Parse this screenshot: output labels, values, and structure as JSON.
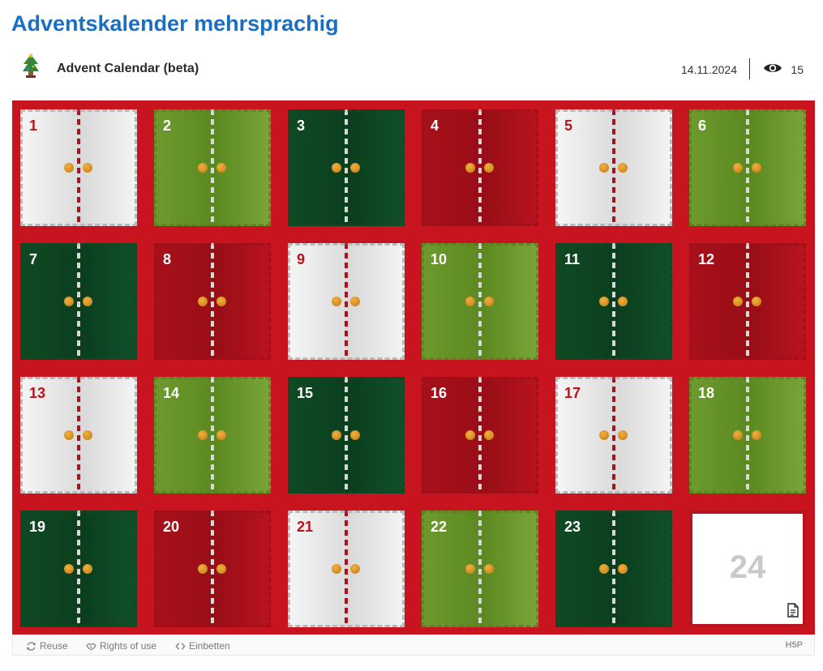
{
  "page": {
    "title": "Adventskalender mehrsprachig"
  },
  "content": {
    "icon": "christmas-tree-icon",
    "title": "Advent Calendar (beta)",
    "date": "14.11.2024",
    "view_icon": "eye-icon",
    "view_count": "15"
  },
  "calendar": {
    "background": "#c8141e",
    "doors": [
      {
        "label": "1",
        "style": "white"
      },
      {
        "label": "2",
        "style": "green"
      },
      {
        "label": "3",
        "style": "dark"
      },
      {
        "label": "4",
        "style": "red"
      },
      {
        "label": "5",
        "style": "white"
      },
      {
        "label": "6",
        "style": "green"
      },
      {
        "label": "7",
        "style": "dark"
      },
      {
        "label": "8",
        "style": "red"
      },
      {
        "label": "9",
        "style": "white"
      },
      {
        "label": "10",
        "style": "green"
      },
      {
        "label": "11",
        "style": "dark"
      },
      {
        "label": "12",
        "style": "red"
      },
      {
        "label": "13",
        "style": "white"
      },
      {
        "label": "14",
        "style": "green"
      },
      {
        "label": "15",
        "style": "dark"
      },
      {
        "label": "16",
        "style": "red"
      },
      {
        "label": "17",
        "style": "white"
      },
      {
        "label": "18",
        "style": "green"
      },
      {
        "label": "19",
        "style": "dark"
      },
      {
        "label": "20",
        "style": "red"
      },
      {
        "label": "21",
        "style": "white"
      },
      {
        "label": "22",
        "style": "green"
      },
      {
        "label": "23",
        "style": "dark"
      },
      {
        "label": "24",
        "style": "open"
      }
    ],
    "open_door_icon": "document-icon"
  },
  "footer": {
    "reuse": "Reuse",
    "rights": "Rights of use",
    "embed": "Einbetten",
    "brand": "H5P"
  }
}
